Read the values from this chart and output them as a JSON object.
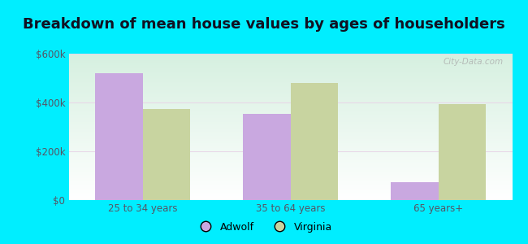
{
  "title": "Breakdown of mean house values by ages of householders",
  "categories": [
    "25 to 34 years",
    "35 to 64 years",
    "65 years+"
  ],
  "adwolf_values": [
    520000,
    355000,
    75000
  ],
  "virginia_values": [
    375000,
    480000,
    395000
  ],
  "adwolf_color": "#c9a8e0",
  "virginia_color": "#c8d4a0",
  "ylim": [
    0,
    600000
  ],
  "yticks": [
    0,
    200000,
    400000,
    600000
  ],
  "ytick_labels": [
    "$0",
    "$200k",
    "$400k",
    "$600k"
  ],
  "background_outer": "#00eeff",
  "grad_top": "#d6f0e0",
  "grad_bottom": "#ffffff",
  "title_fontsize": 13,
  "legend_labels": [
    "Adwolf",
    "Virginia"
  ],
  "bar_width": 0.32,
  "watermark": "City-Data.com"
}
